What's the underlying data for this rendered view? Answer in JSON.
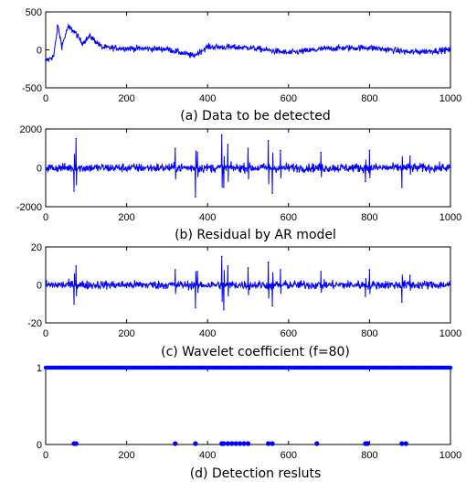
{
  "chart_data": [
    {
      "type": "line",
      "caption": "(a) Data to be detected",
      "xlim": [
        0,
        1000
      ],
      "ylim": [
        -500,
        500
      ],
      "xticks": [
        0,
        200,
        400,
        600,
        800,
        1000
      ],
      "yticks": [
        500,
        0,
        -500
      ],
      "ytick_labels": [
        "500",
        "0",
        "-500"
      ],
      "color": "#0000ff",
      "series": [
        {
          "x": [
            0,
            20,
            30,
            40,
            55,
            70,
            90,
            110,
            140,
            200,
            300,
            365,
            400,
            500,
            600,
            700,
            800,
            900,
            1000
          ],
          "values": [
            -150,
            -80,
            320,
            50,
            300,
            250,
            90,
            180,
            30,
            20,
            10,
            -80,
            40,
            30,
            -40,
            20,
            30,
            -30,
            0
          ]
        }
      ]
    },
    {
      "type": "line",
      "caption": "(b) Residual by AR model",
      "xlim": [
        0,
        1000
      ],
      "ylim": [
        -2000,
        2000
      ],
      "xticks": [
        0,
        200,
        400,
        600,
        800,
        1000
      ],
      "yticks": [
        2000,
        0,
        -2000
      ],
      "ytick_labels": [
        "2000",
        "0",
        "-2000"
      ],
      "color": "#0000ff",
      "series": [
        {
          "x": [
            0,
            70,
            75,
            80,
            300,
            320,
            370,
            375,
            435,
            440,
            450,
            500,
            550,
            560,
            580,
            680,
            790,
            800,
            880,
            900,
            1000
          ],
          "values": [
            0,
            -1200,
            1500,
            0,
            0,
            1000,
            -1500,
            800,
            1700,
            -1000,
            1200,
            1000,
            1400,
            -1300,
            900,
            800,
            -700,
            900,
            -1000,
            600,
            0
          ]
        }
      ]
    },
    {
      "type": "line",
      "caption": "(c) Wavelet coefficient (f=80)",
      "xlim": [
        0,
        1000
      ],
      "ylim": [
        -20,
        20
      ],
      "xticks": [
        0,
        200,
        400,
        600,
        800,
        1000
      ],
      "yticks": [
        20,
        0,
        -20
      ],
      "ytick_labels": [
        "20",
        "0",
        "-20"
      ],
      "color": "#0000ff",
      "series": [
        {
          "x": [
            0,
            70,
            75,
            80,
            300,
            320,
            370,
            375,
            435,
            440,
            450,
            500,
            550,
            560,
            580,
            680,
            790,
            800,
            880,
            900,
            1000
          ],
          "values": [
            0,
            -10,
            10,
            0,
            0,
            8,
            -12,
            7,
            15,
            -13,
            10,
            9,
            12,
            -11,
            8,
            7,
            -6,
            8,
            -9,
            5,
            0
          ]
        }
      ]
    },
    {
      "type": "scatter",
      "caption": "(d) Detection resluts",
      "xlim": [
        0,
        1000
      ],
      "ylim": [
        0,
        1
      ],
      "xticks": [
        0,
        200,
        400,
        600,
        800,
        1000
      ],
      "yticks": [
        1,
        0
      ],
      "ytick_labels": [
        "1",
        "0"
      ],
      "color": "#0000ff",
      "baseline_value": 1,
      "detections_at_zero": [
        70,
        75,
        320,
        370,
        435,
        440,
        450,
        460,
        470,
        480,
        490,
        500,
        550,
        560,
        670,
        790,
        795,
        880,
        890
      ]
    }
  ],
  "xtick_labels": [
    "0",
    "200",
    "400",
    "600",
    "800",
    "1000"
  ]
}
